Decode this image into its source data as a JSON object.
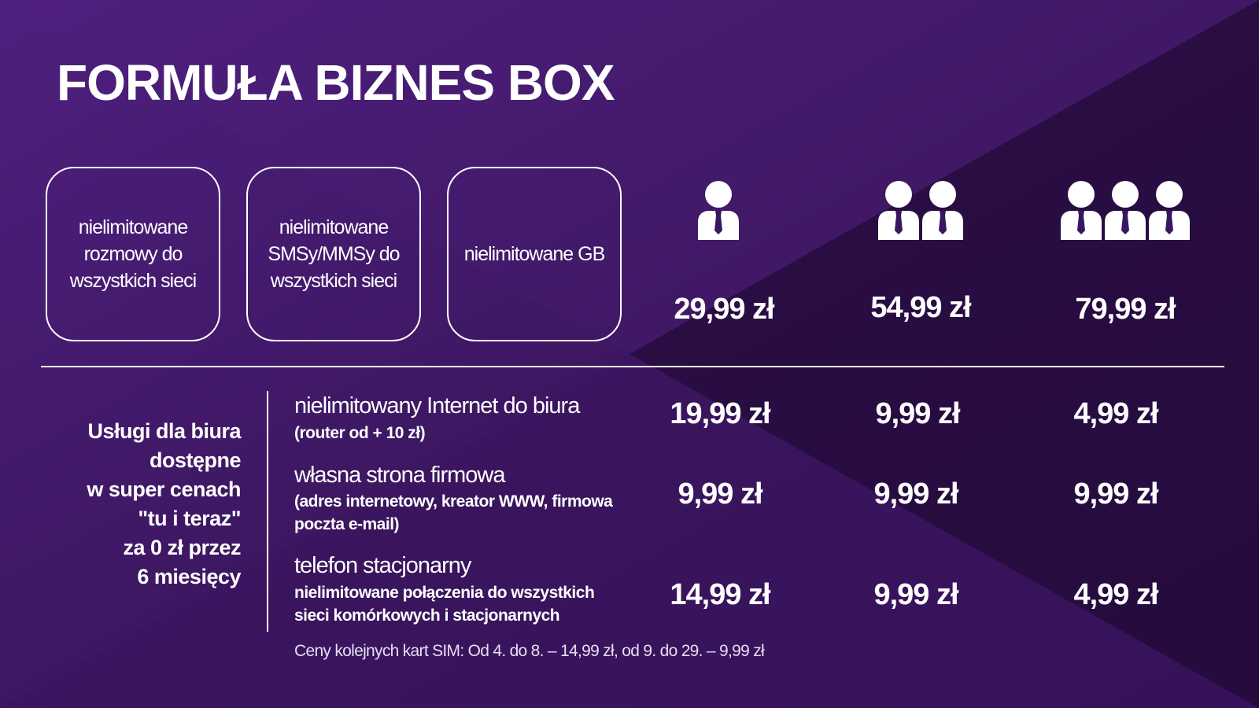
{
  "title": "FORMUŁA BIZNES BOX",
  "features": [
    [
      "nielimitowane",
      "rozmowy do",
      "wszystkich sieci"
    ],
    [
      "nielimitowane",
      "SMSy/MMSy do",
      "wszystkich sieci"
    ],
    [
      "nielimitowane GB"
    ]
  ],
  "plans": [
    {
      "price": "29,99 zł"
    },
    {
      "price": "54,99 zł"
    },
    {
      "price": "79,99 zł"
    }
  ],
  "services_label": [
    "Usługi dla biura",
    "dostępne",
    "w super cenach",
    "\"tu i teraz\"",
    "za 0 zł przez",
    "6 miesięcy"
  ],
  "services": [
    {
      "name": "nielimitowany Internet do biura",
      "note": [
        "(router od + 10 zł)"
      ],
      "prices": [
        "19,99 zł",
        "9,99 zł",
        "4,99 zł"
      ]
    },
    {
      "name": "własna strona firmowa",
      "note": [
        "(adres internetowy, kreator WWW, firmowa",
        "poczta e-mail)"
      ],
      "prices": [
        "9,99 zł",
        "9,99 zł",
        "9,99 zł"
      ]
    },
    {
      "name": "telefon stacjonarny",
      "note": [
        "nielimitowane połączenia do wszystkich",
        "sieci komórkowych i stacjonarnych"
      ],
      "prices": [
        "14,99 zł",
        "9,99 zł",
        "4,99 zł"
      ]
    }
  ],
  "footnote": "Ceny kolejnych kart SIM: Od 4. do 8. – 14,99 zł, od 9. do 29. – 9,99 zł"
}
